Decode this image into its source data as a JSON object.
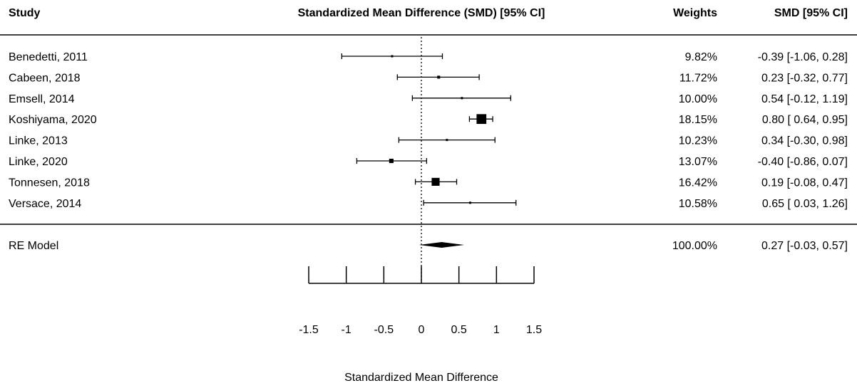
{
  "headers": {
    "study": "Study",
    "effect": "Standardized Mean Difference (SMD) [95% CI]",
    "weights": "Weights",
    "smd": "SMD [95% CI]"
  },
  "chart_data": {
    "type": "forest",
    "xlabel": "Standardized Mean Difference",
    "xlim": [
      -1.5,
      1.5
    ],
    "xticks": [
      -1.5,
      -1,
      -0.5,
      0,
      0.5,
      1,
      1.5
    ],
    "xtick_labels": [
      "-1.5",
      "-1",
      "-0.5",
      "0",
      "0.5",
      "1",
      "1.5"
    ],
    "reference_line": 0,
    "studies": [
      {
        "name": "Benedetti, 2011",
        "smd": -0.39,
        "lo": -1.06,
        "hi": 0.28,
        "weight": 9.82,
        "weight_text": "9.82%",
        "ci_text": "-0.39 [-1.06, 0.28]"
      },
      {
        "name": "Cabeen, 2018",
        "smd": 0.23,
        "lo": -0.32,
        "hi": 0.77,
        "weight": 11.72,
        "weight_text": "11.72%",
        "ci_text": "0.23 [-0.32, 0.77]"
      },
      {
        "name": "Emsell, 2014",
        "smd": 0.54,
        "lo": -0.12,
        "hi": 1.19,
        "weight": 10.0,
        "weight_text": "10.00%",
        "ci_text": "0.54 [-0.12, 1.19]"
      },
      {
        "name": "Koshiyama, 2020",
        "smd": 0.8,
        "lo": 0.64,
        "hi": 0.95,
        "weight": 18.15,
        "weight_text": "18.15%",
        "ci_text": "0.80 [ 0.64, 0.95]"
      },
      {
        "name": "Linke, 2013",
        "smd": 0.34,
        "lo": -0.3,
        "hi": 0.98,
        "weight": 10.23,
        "weight_text": "10.23%",
        "ci_text": "0.34 [-0.30, 0.98]"
      },
      {
        "name": "Linke, 2020",
        "smd": -0.4,
        "lo": -0.86,
        "hi": 0.07,
        "weight": 13.07,
        "weight_text": "13.07%",
        "ci_text": "-0.40 [-0.86, 0.07]"
      },
      {
        "name": "Tonnesen, 2018",
        "smd": 0.19,
        "lo": -0.08,
        "hi": 0.47,
        "weight": 16.42,
        "weight_text": "16.42%",
        "ci_text": "0.19 [-0.08, 0.47]"
      },
      {
        "name": "Versace, 2014",
        "smd": 0.65,
        "lo": 0.03,
        "hi": 1.26,
        "weight": 10.58,
        "weight_text": "10.58%",
        "ci_text": "0.65 [ 0.03, 1.26]"
      }
    ],
    "summary": {
      "name": "RE Model",
      "smd": 0.27,
      "lo": -0.03,
      "hi": 0.57,
      "weight": 100.0,
      "weight_text": "100.00%",
      "ci_text": "0.27 [-0.03, 0.57]"
    }
  }
}
